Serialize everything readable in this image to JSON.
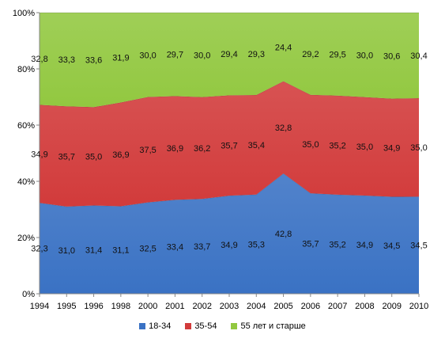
{
  "chart_data": {
    "type": "area",
    "stacked": "percent",
    "categories": [
      "1994",
      "1995",
      "1996",
      "1998",
      "2000",
      "2001",
      "2002",
      "2003",
      "2004",
      "2005",
      "2006",
      "2007",
      "2008",
      "2009",
      "2010"
    ],
    "series": [
      {
        "name": "18-34",
        "color": "#3a72c4",
        "values": [
          32.3,
          31.0,
          31.4,
          31.1,
          32.5,
          33.4,
          33.7,
          34.9,
          35.3,
          42.8,
          35.7,
          35.2,
          34.9,
          34.5,
          34.5
        ],
        "labels": [
          "32,3",
          "31,0",
          "31,4",
          "31,1",
          "32,5",
          "33,4",
          "33,7",
          "34,9",
          "35,3",
          "42,8",
          "35,7",
          "35,2",
          "34,9",
          "34,5",
          "34,5"
        ]
      },
      {
        "name": "35-54",
        "color": "#d23b3b",
        "values": [
          34.9,
          35.7,
          35.0,
          36.9,
          37.5,
          36.9,
          36.2,
          35.7,
          35.4,
          32.8,
          35.0,
          35.2,
          35.0,
          34.9,
          35.0
        ],
        "labels": [
          "34,9",
          "35,7",
          "35,0",
          "36,9",
          "37,5",
          "36,9",
          "36,2",
          "35,7",
          "35,4",
          "32,8",
          "35,0",
          "35,2",
          "35,0",
          "34,9",
          "35,0"
        ]
      },
      {
        "name": "55 лет и старше",
        "color": "#92c840",
        "values": [
          32.8,
          33.3,
          33.6,
          31.9,
          30.0,
          29.7,
          30.0,
          29.4,
          29.3,
          24.4,
          29.2,
          29.5,
          30.0,
          30.6,
          30.4
        ],
        "labels": [
          "32,8",
          "33,3",
          "33,6",
          "31,9",
          "30,0",
          "29,7",
          "30,0",
          "29,4",
          "29,3",
          "24,4",
          "29,2",
          "29,5",
          "30,0",
          "30,6",
          "30,4"
        ]
      }
    ],
    "y_ticks": [
      "0%",
      "20%",
      "40%",
      "60%",
      "80%",
      "100%"
    ],
    "ylim": [
      0,
      100
    ],
    "legend_position": "bottom",
    "grid": false
  }
}
